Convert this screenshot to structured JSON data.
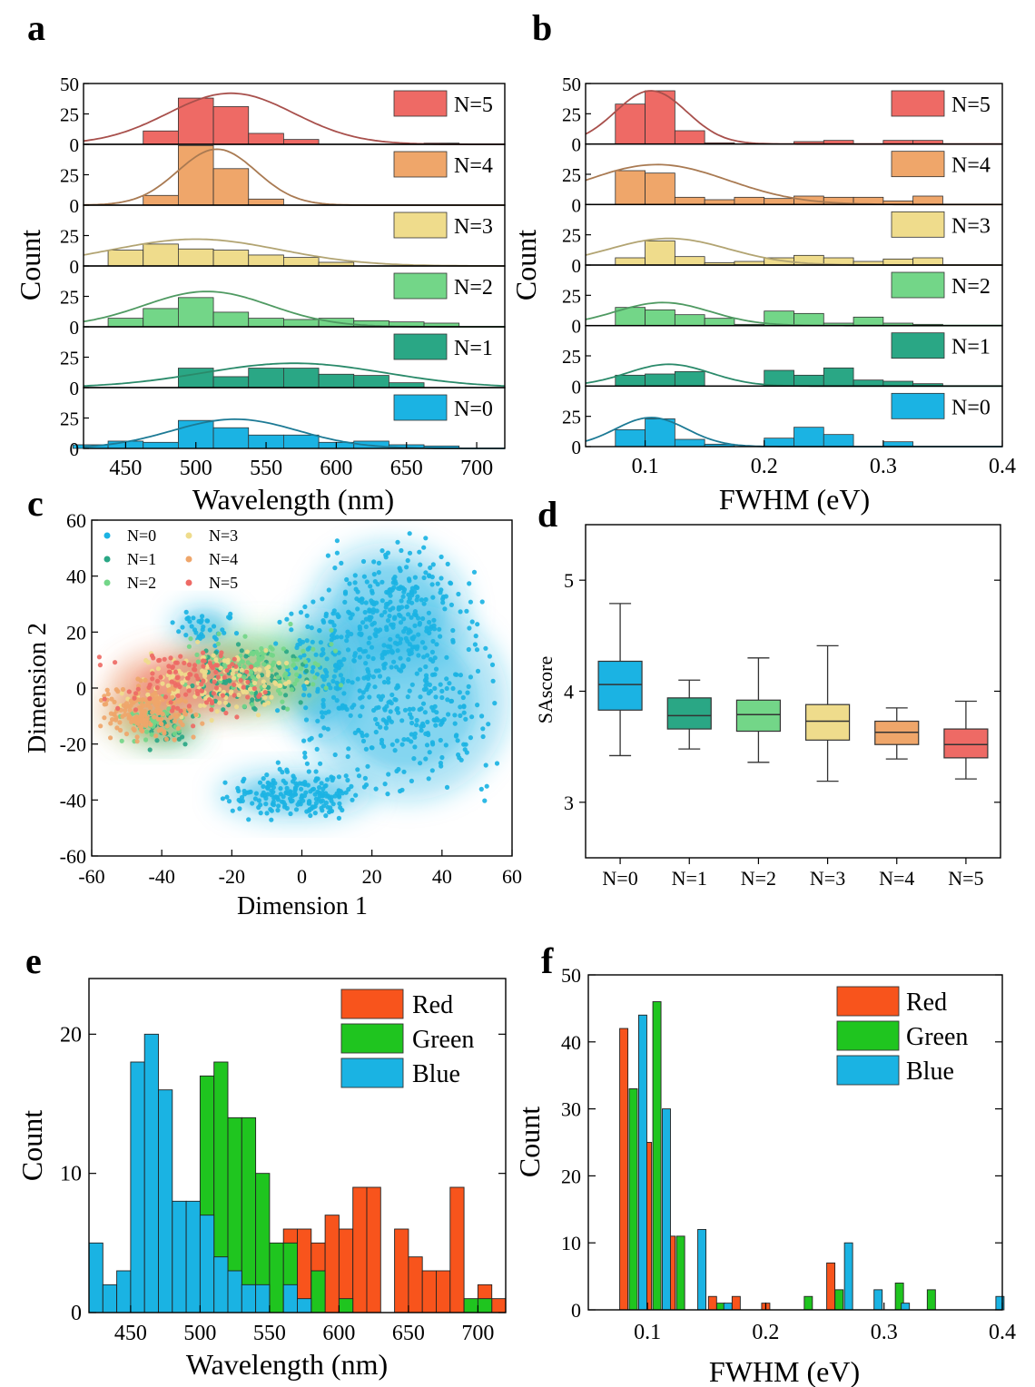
{
  "panel_labels": [
    "a",
    "b",
    "c",
    "d",
    "e",
    "f"
  ],
  "colors": {
    "N=0": "#1bb3e3",
    "N=1": "#2aa785",
    "N=2": "#73d688",
    "N=3": "#efdc8c",
    "N=4": "#efa66a",
    "N=5": "#ee6a65",
    "Red": "#f8541c",
    "Green": "#1fc51f",
    "Blue": "#1ab3e3"
  },
  "curve_colors": {
    "N=0": "#1d7a95",
    "N=1": "#2a8a6a",
    "N=2": "#4f9a62",
    "N=3": "#b2a472",
    "N=4": "#a97a52",
    "N=5": "#a8504c"
  },
  "chart_data": [
    {
      "panel": "a",
      "type": "bar",
      "stacked_panels": true,
      "xlabel": "Wavelength (nm)",
      "ylabel": "Count",
      "xlim": [
        420,
        720
      ],
      "ylim": [
        0,
        50
      ],
      "xticks": [
        "450",
        "500",
        "550",
        "600",
        "650",
        "700"
      ],
      "yticks": [
        "0",
        "25",
        "50"
      ],
      "bin_width": 25,
      "series": [
        {
          "name": "N=5",
          "bins": [
            425,
            450,
            475,
            500,
            525,
            550,
            575,
            600,
            625,
            650,
            675,
            700
          ],
          "values": [
            0,
            0,
            11,
            38,
            31,
            9,
            4,
            0,
            0,
            0,
            1,
            0
          ],
          "curve": {
            "peak": 42,
            "mean": 525,
            "sd": 45
          }
        },
        {
          "name": "N=4",
          "bins": [
            425,
            450,
            475,
            500,
            525,
            550,
            575,
            600,
            625,
            650,
            675,
            700
          ],
          "values": [
            0,
            0,
            8,
            49,
            30,
            5,
            0,
            0,
            0,
            0,
            0,
            0
          ],
          "curve": {
            "peak": 46,
            "mean": 515,
            "sd": 28
          }
        },
        {
          "name": "N=3",
          "bins": [
            425,
            450,
            475,
            500,
            525,
            550,
            575,
            600,
            625,
            650,
            675,
            700
          ],
          "values": [
            0,
            13,
            18,
            14,
            13,
            9,
            7,
            3,
            0,
            0,
            0,
            0
          ],
          "curve": {
            "peak": 22,
            "mean": 500,
            "sd": 60
          }
        },
        {
          "name": "N=2",
          "bins": [
            425,
            450,
            475,
            500,
            525,
            550,
            575,
            600,
            625,
            650,
            675,
            700
          ],
          "values": [
            0,
            7,
            15,
            24,
            12,
            7,
            6,
            7,
            5,
            4,
            3,
            0
          ],
          "curve": {
            "peak": 29,
            "mean": 508,
            "sd": 45
          }
        },
        {
          "name": "N=1",
          "bins": [
            425,
            450,
            475,
            500,
            525,
            550,
            575,
            600,
            625,
            650,
            675,
            700
          ],
          "values": [
            0,
            0,
            0,
            16,
            9,
            16,
            16,
            11,
            10,
            4,
            0,
            0
          ],
          "curve": {
            "peak": 20,
            "mean": 570,
            "sd": 65
          }
        },
        {
          "name": "N=0",
          "bins": [
            425,
            450,
            475,
            500,
            525,
            550,
            575,
            600,
            625,
            650,
            675,
            700
          ],
          "values": [
            3,
            6,
            5,
            23,
            17,
            11,
            11,
            5,
            6,
            3,
            2,
            0
          ],
          "curve": {
            "peak": 24,
            "mean": 528,
            "sd": 45
          }
        }
      ]
    },
    {
      "panel": "b",
      "type": "bar",
      "stacked_panels": true,
      "xlabel": "FWHM (eV)",
      "ylabel": "Count",
      "xlim": [
        0.05,
        0.4
      ],
      "ylim": [
        0,
        50
      ],
      "xticks": [
        "0.1",
        "0.2",
        "0.3",
        "0.4"
      ],
      "yticks": [
        "0",
        "25",
        "50"
      ],
      "bin_width": 0.025,
      "series": [
        {
          "name": "N=5",
          "bins": [
            0.0875,
            0.1125,
            0.1375,
            0.1625,
            0.1875,
            0.2125,
            0.2375,
            0.2625,
            0.2875,
            0.3125,
            0.3375
          ],
          "values": [
            33,
            44,
            11,
            1,
            0,
            0,
            2,
            3,
            0,
            3,
            3
          ],
          "curve": {
            "peak": 44,
            "mean": 0.105,
            "sd": 0.03
          }
        },
        {
          "name": "N=4",
          "bins": [
            0.0875,
            0.1125,
            0.1375,
            0.1625,
            0.1875,
            0.2125,
            0.2375,
            0.2625,
            0.2875,
            0.3125,
            0.3375
          ],
          "values": [
            28,
            26,
            6,
            4,
            6,
            5,
            7,
            6,
            6,
            3,
            7
          ],
          "curve": {
            "peak": 33,
            "mean": 0.11,
            "sd": 0.06
          }
        },
        {
          "name": "N=3",
          "bins": [
            0.0875,
            0.1125,
            0.1375,
            0.1625,
            0.1875,
            0.2125,
            0.2375,
            0.2625,
            0.2875,
            0.3125,
            0.3375
          ],
          "values": [
            6,
            20,
            7,
            2,
            3,
            6,
            8,
            6,
            3,
            5,
            6
          ],
          "curve": {
            "peak": 22,
            "mean": 0.12,
            "sd": 0.05
          }
        },
        {
          "name": "N=2",
          "bins": [
            0.0875,
            0.1125,
            0.1375,
            0.1625,
            0.1875,
            0.2125,
            0.2375,
            0.2625,
            0.2875,
            0.3125,
            0.3375
          ],
          "values": [
            15,
            13,
            9,
            6,
            1,
            12,
            10,
            2,
            7,
            2,
            1
          ],
          "curve": {
            "peak": 19,
            "mean": 0.115,
            "sd": 0.04
          }
        },
        {
          "name": "N=1",
          "bins": [
            0.0875,
            0.1125,
            0.1375,
            0.1625,
            0.1875,
            0.2125,
            0.2375,
            0.2625,
            0.2875,
            0.3125,
            0.3375
          ],
          "values": [
            9,
            10,
            12,
            0,
            0,
            13,
            9,
            15,
            5,
            4,
            2
          ],
          "curve": {
            "peak": 18,
            "mean": 0.12,
            "sd": 0.035
          }
        },
        {
          "name": "N=0",
          "bins": [
            0.0875,
            0.1125,
            0.1375,
            0.1625,
            0.1875,
            0.2125,
            0.2375,
            0.2625,
            0.2875,
            0.3125,
            0.3375
          ],
          "values": [
            14,
            23,
            6,
            2,
            0,
            7,
            16,
            10,
            0,
            4,
            0
          ],
          "curve": {
            "peak": 24,
            "mean": 0.105,
            "sd": 0.03
          }
        }
      ]
    },
    {
      "panel": "c",
      "type": "scatter",
      "xlabel": "Dimension 1",
      "ylabel": "Dimension 2",
      "xlim": [
        -60,
        60
      ],
      "ylim": [
        -60,
        60
      ],
      "xticks": [
        "-60",
        "-40",
        "-20",
        "0",
        "20",
        "40",
        "60"
      ],
      "yticks": [
        "-60",
        "-40",
        "-20",
        "0",
        "20",
        "40",
        "60"
      ],
      "legend": [
        "N=0",
        "N=1",
        "N=2",
        "N=3",
        "N=4",
        "N=5"
      ],
      "clusters": [
        {
          "name": "N=0",
          "regions": [
            [
              25,
              28,
              14,
              15,
              260
            ],
            [
              30,
              -5,
              18,
              22,
              320
            ],
            [
              -2,
              -38,
              14,
              6,
              200
            ],
            [
              -28,
              22,
              6,
              5,
              40
            ],
            [
              5,
              5,
              8,
              15,
              90
            ]
          ]
        },
        {
          "name": "N=1",
          "regions": [
            [
              -15,
              3,
              12,
              8,
              110
            ],
            [
              -38,
              -15,
              6,
              4,
              30
            ]
          ]
        },
        {
          "name": "N=2",
          "regions": [
            [
              -12,
              8,
              14,
              9,
              120
            ],
            [
              -42,
              -12,
              8,
              6,
              40
            ]
          ]
        },
        {
          "name": "N=3",
          "regions": [
            [
              -25,
              2,
              18,
              8,
              140
            ]
          ]
        },
        {
          "name": "N=4",
          "regions": [
            [
              -45,
              -8,
              9,
              7,
              180
            ]
          ]
        },
        {
          "name": "N=5",
          "regions": [
            [
              -32,
              2,
              14,
              8,
              110
            ]
          ]
        }
      ]
    },
    {
      "panel": "d",
      "type": "box",
      "ylabel": "SAscore",
      "ylim": [
        2.5,
        5.5
      ],
      "yticks": [
        "3",
        "4",
        "5"
      ],
      "categories": [
        "N=0",
        "N=1",
        "N=2",
        "N=3",
        "N=4",
        "N=5"
      ],
      "boxes": [
        {
          "min": 3.42,
          "q1": 3.83,
          "median": 4.06,
          "q3": 4.27,
          "max": 4.79
        },
        {
          "min": 3.48,
          "q1": 3.66,
          "median": 3.78,
          "q3": 3.94,
          "max": 4.1
        },
        {
          "min": 3.36,
          "q1": 3.64,
          "median": 3.79,
          "q3": 3.92,
          "max": 4.3
        },
        {
          "min": 3.19,
          "q1": 3.56,
          "median": 3.73,
          "q3": 3.88,
          "max": 4.41
        },
        {
          "min": 3.39,
          "q1": 3.52,
          "median": 3.63,
          "q3": 3.73,
          "max": 3.85
        },
        {
          "min": 3.21,
          "q1": 3.4,
          "median": 3.52,
          "q3": 3.66,
          "max": 3.91
        }
      ]
    },
    {
      "panel": "e",
      "type": "bar",
      "xlabel": "Wavelength (nm)",
      "ylabel": "Count",
      "xlim": [
        420,
        720
      ],
      "ylim": [
        0,
        24
      ],
      "xticks": [
        "450",
        "500",
        "550",
        "600",
        "650",
        "700"
      ],
      "yticks": [
        "0",
        "10",
        "20"
      ],
      "legend": [
        "Red",
        "Green",
        "Blue"
      ],
      "bin_width": 10,
      "series": [
        {
          "name": "Red",
          "bins": [
            565,
            575,
            585,
            595,
            605,
            615,
            625,
            635,
            645,
            655,
            665,
            675,
            685,
            695,
            705,
            715
          ],
          "values": [
            6,
            6,
            5,
            7,
            6,
            9,
            9,
            0,
            6,
            4,
            3,
            3,
            9,
            0,
            2,
            1
          ]
        },
        {
          "name": "Green",
          "bins": [
            505,
            515,
            525,
            535,
            545,
            555,
            565,
            575,
            585,
            595,
            605,
            615,
            625,
            635,
            645,
            655,
            665,
            675,
            685,
            695,
            705,
            715
          ],
          "values": [
            17,
            18,
            14,
            14,
            10,
            5,
            5,
            0,
            3,
            0,
            1,
            0,
            0,
            0,
            0,
            0,
            0,
            0,
            0,
            1,
            1,
            0
          ]
        },
        {
          "name": "Blue",
          "bins": [
            425,
            435,
            445,
            455,
            465,
            475,
            485,
            495,
            505,
            515,
            525,
            535,
            545,
            555,
            565,
            575,
            585,
            595
          ],
          "values": [
            5,
            2,
            3,
            18,
            20,
            16,
            8,
            8,
            7,
            4,
            3,
            2,
            2,
            0,
            2,
            1,
            0,
            0
          ]
        }
      ]
    },
    {
      "panel": "f",
      "type": "bar",
      "xlabel": "FWHM (eV)",
      "ylabel": "Count",
      "xlim": [
        0.05,
        0.4
      ],
      "ylim": [
        0,
        50
      ],
      "xticks": [
        "0.1",
        "0.2",
        "0.3",
        "0.4"
      ],
      "yticks": [
        "0",
        "10",
        "20",
        "30",
        "40",
        "50"
      ],
      "legend": [
        "Red",
        "Green",
        "Blue"
      ],
      "series": [
        {
          "name": "Red",
          "x": [
            0.08,
            0.1,
            0.12,
            0.155,
            0.175,
            0.2,
            0.255
          ],
          "values": [
            42,
            25,
            11,
            2,
            2,
            1,
            7
          ]
        },
        {
          "name": "Green",
          "x": [
            0.088,
            0.108,
            0.128,
            0.162,
            0.236,
            0.262,
            0.313,
            0.34
          ],
          "values": [
            33,
            46,
            11,
            1,
            2,
            3,
            4,
            3
          ]
        },
        {
          "name": "Blue",
          "x": [
            0.096,
            0.116,
            0.146,
            0.168,
            0.27,
            0.295,
            0.318,
            0.398
          ],
          "values": [
            44,
            30,
            12,
            1,
            10,
            3,
            1,
            2
          ]
        }
      ]
    }
  ]
}
